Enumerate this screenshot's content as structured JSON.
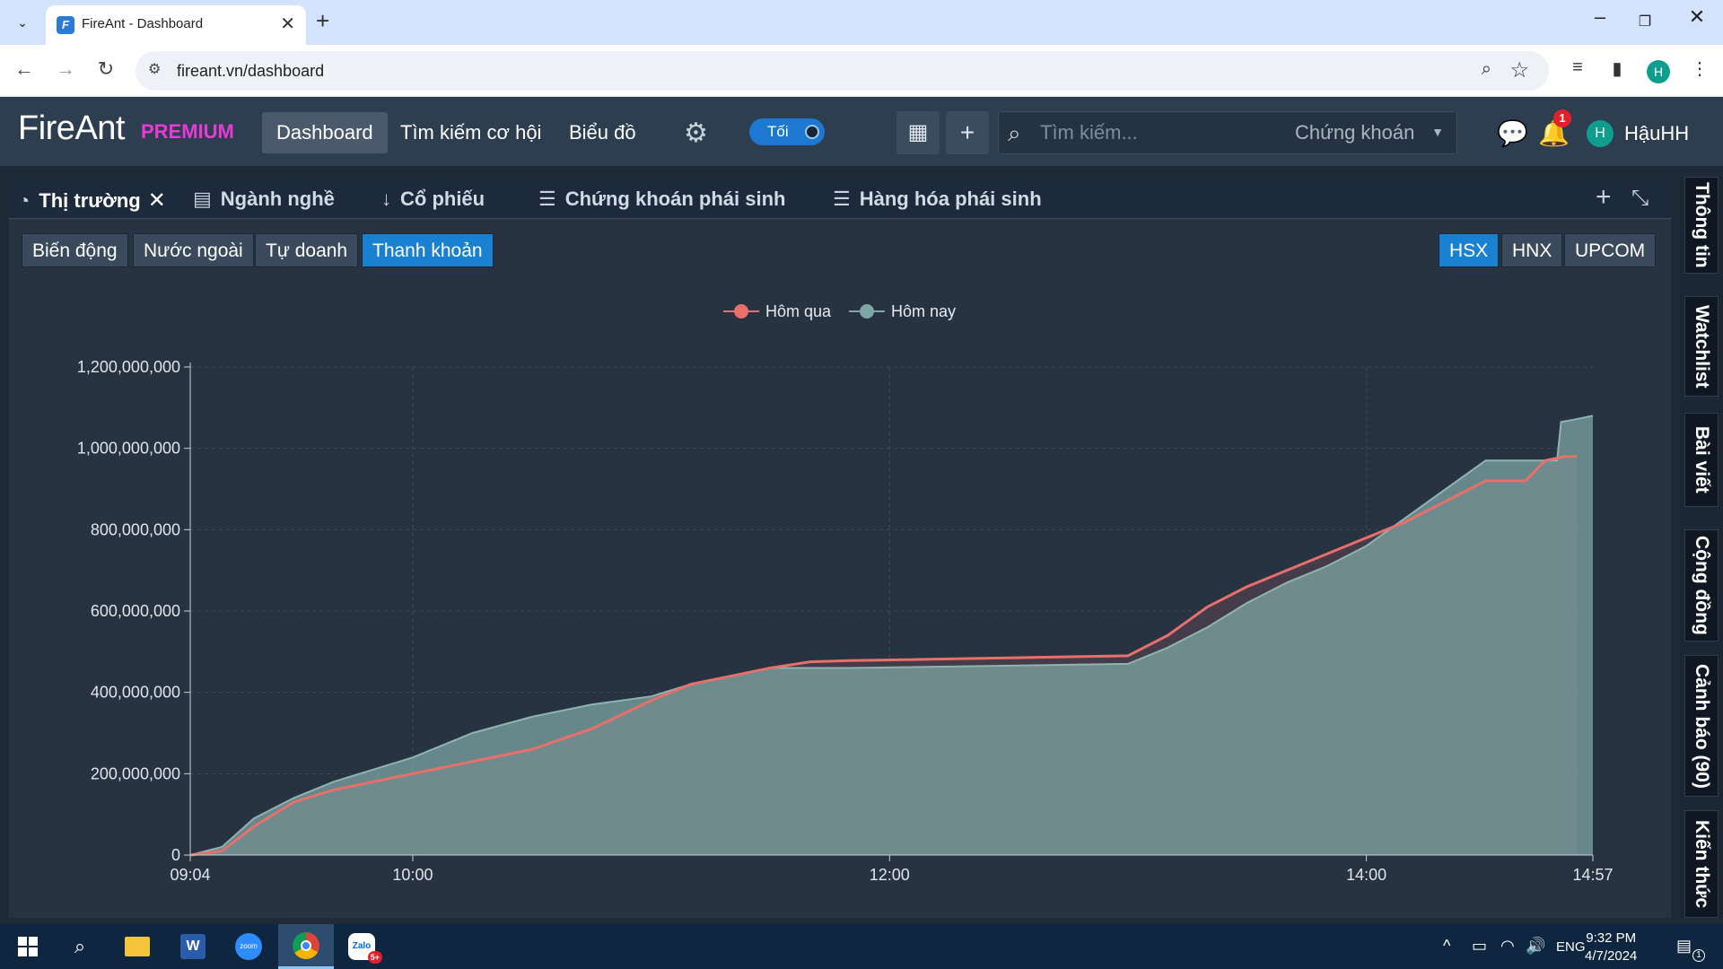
{
  "browser": {
    "tab_title": "FireAnt - Dashboard",
    "url": "fireant.vn/dashboard",
    "profile_initial": "H",
    "icons": [
      "tab-search-icon",
      "favicon-fireant",
      "close-tab-icon",
      "new-tab-icon",
      "minimize-icon",
      "restore-icon",
      "close-window-icon",
      "back-icon",
      "forward-icon",
      "reload-icon",
      "site-info-icon",
      "zoom-icon",
      "bookmark-star-icon",
      "media-queue-icon",
      "side-panel-icon",
      "kebab-menu-icon"
    ]
  },
  "header": {
    "logo": "FireAnt",
    "premium": "PREMIUM",
    "nav": [
      "Dashboard",
      "Tìm kiếm cơ hội",
      "Biểu đồ"
    ],
    "active_nav": "Dashboard",
    "theme_toggle": "Tối",
    "search_placeholder": "Tìm kiếm...",
    "search_type": "Chứng khoán",
    "notification_count": "1",
    "user_initial": "H",
    "username": "HậuHH"
  },
  "panel": {
    "tabs": [
      "Thị trường",
      "Ngành nghề",
      "Cổ phiếu",
      "Chứng khoán phái sinh",
      "Hàng hóa phái sinh"
    ],
    "active_tab": "Thị trường",
    "subtabs": [
      "Biến động",
      "Nước ngoài",
      "Tự doanh",
      "Thanh khoản"
    ],
    "active_subtab": "Thanh khoản",
    "exchanges": [
      "HSX",
      "HNX",
      "UPCOM"
    ],
    "active_exchange": "HSX"
  },
  "right_rail": [
    "Thông tin",
    "Watchlist",
    "Bài viết",
    "Cộng đồng",
    "Cảnh báo (90)",
    "Kiến thức"
  ],
  "chart_data": {
    "type": "area",
    "x_unit": "time",
    "x_ticks": [
      "09:04",
      "10:00",
      "12:00",
      "14:00",
      "14:57"
    ],
    "y_ticks": [
      "0",
      "200,000,000",
      "400,000,000",
      "600,000,000",
      "800,000,000",
      "1,000,000,000",
      "1,200,000,000"
    ],
    "ylim": [
      0,
      1200000000
    ],
    "grid": true,
    "legend_position": "top-center",
    "series": [
      {
        "name": "Hôm qua",
        "color": "#e8706a",
        "x": [
          "09:04",
          "09:12",
          "09:20",
          "09:30",
          "09:40",
          "09:50",
          "10:00",
          "10:15",
          "10:30",
          "10:45",
          "11:00",
          "11:10",
          "11:20",
          "11:30",
          "11:40",
          "11:50",
          "13:00",
          "13:10",
          "13:20",
          "13:30",
          "13:40",
          "13:50",
          "14:00",
          "14:10",
          "14:20",
          "14:30",
          "14:40",
          "14:45",
          "14:50",
          "14:53"
        ],
        "values": [
          0,
          10000000,
          70000000,
          130000000,
          160000000,
          180000000,
          200000000,
          230000000,
          260000000,
          310000000,
          380000000,
          420000000,
          440000000,
          460000000,
          475000000,
          478000000,
          490000000,
          540000000,
          610000000,
          660000000,
          700000000,
          740000000,
          780000000,
          820000000,
          870000000,
          920000000,
          920000000,
          970000000,
          980000000,
          980000000
        ]
      },
      {
        "name": "Hôm nay",
        "color": "#7ea6a4",
        "x": [
          "09:04",
          "09:12",
          "09:20",
          "09:30",
          "09:40",
          "09:50",
          "10:00",
          "10:15",
          "10:30",
          "10:45",
          "11:00",
          "11:10",
          "11:20",
          "11:30",
          "11:40",
          "11:50",
          "13:00",
          "13:10",
          "13:20",
          "13:30",
          "13:40",
          "13:50",
          "14:00",
          "14:10",
          "14:20",
          "14:30",
          "14:40",
          "14:48",
          "14:49",
          "14:52",
          "14:57"
        ],
        "values": [
          0,
          20000000,
          90000000,
          140000000,
          180000000,
          210000000,
          240000000,
          300000000,
          340000000,
          370000000,
          390000000,
          420000000,
          440000000,
          460000000,
          460000000,
          460000000,
          470000000,
          510000000,
          560000000,
          620000000,
          670000000,
          710000000,
          760000000,
          830000000,
          900000000,
          970000000,
          970000000,
          970000000,
          1065000000,
          1070000000,
          1080000000
        ]
      }
    ]
  },
  "taskbar": {
    "apps": [
      "windows-start-icon",
      "search-icon",
      "file-explorer-icon",
      "word-icon",
      "zoom-icon",
      "chrome-icon",
      "zalo-icon"
    ],
    "zalo_badge": "5+",
    "language": "ENG",
    "time": "9:32 PM",
    "date": "4/7/2024",
    "notif_count": "1"
  }
}
